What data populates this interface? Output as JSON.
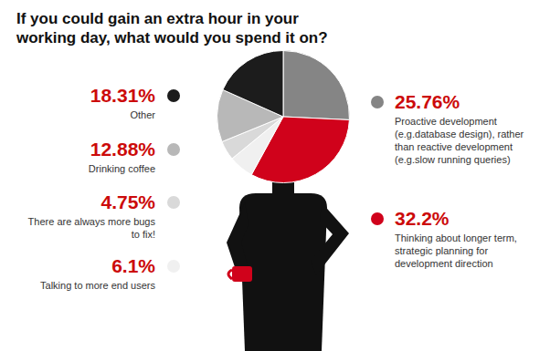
{
  "chart_data": {
    "type": "pie",
    "title": "If you could gain an extra hour in your working day, what would you spend it on?",
    "categories": [
      "Proactive development (e.g.database design), rather than reactive development (e.g.slow running queries)",
      "Thinking about longer term, strategic planning for development direction",
      "Talking to more end users",
      "There are always more bugs to fix!",
      "Drinking coffee",
      "Other"
    ],
    "values": [
      25.76,
      32.2,
      6.1,
      4.75,
      12.88,
      18.31
    ],
    "value_labels": [
      "25.76%",
      "32.2%",
      "6.1%",
      "4.75%",
      "12.88%",
      "18.31%"
    ],
    "colors": [
      "#858585",
      "#d0021b",
      "#f0f0f0",
      "#d9d9d9",
      "#b8b8b8",
      "#1c1c1c"
    ],
    "data_labels": true
  }
}
